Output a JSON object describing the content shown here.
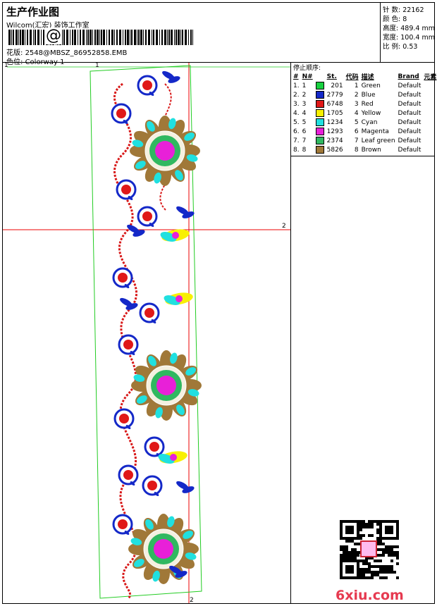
{
  "header": {
    "title": "生产作业图",
    "company": "Wilcom(汇宏) 装饰工作室",
    "barcode_label": "@",
    "design_file_label": "花版:",
    "design_file": "2548@MBSZ_86952858.EMB",
    "colorway_label": "色位:",
    "colorway": "Colorway 1"
  },
  "specs": [
    {
      "label": "针 数:",
      "value": "22162"
    },
    {
      "label": "颜 色:",
      "value": "8"
    },
    {
      "label": "高度:",
      "value": "489.4 mm"
    },
    {
      "label": "宽度:",
      "value": "100.4 mm"
    },
    {
      "label": "比 例:",
      "value": "0.53"
    }
  ],
  "stop_sequence": {
    "title": "停止顺序:",
    "headers": [
      "#",
      "N#",
      "St.",
      "代码",
      "描述",
      "Brand",
      "元素"
    ],
    "rows": [
      {
        "idx": "1.",
        "n": "1",
        "color": "#18d040",
        "code": "201",
        "num": "1",
        "desc": "Green",
        "brand": "Default"
      },
      {
        "idx": "2.",
        "n": "2",
        "color": "#1428c8",
        "code": "2779",
        "num": "2",
        "desc": "Blue",
        "brand": "Default"
      },
      {
        "idx": "3.",
        "n": "3",
        "color": "#e01818",
        "code": "6748",
        "num": "3",
        "desc": "Red",
        "brand": "Default"
      },
      {
        "idx": "4.",
        "n": "4",
        "color": "#f8f000",
        "code": "1705",
        "num": "4",
        "desc": "Yellow",
        "brand": "Default"
      },
      {
        "idx": "5.",
        "n": "5",
        "color": "#20e0e0",
        "code": "1234",
        "num": "5",
        "desc": "Cyan",
        "brand": "Default"
      },
      {
        "idx": "6.",
        "n": "6",
        "color": "#e820d8",
        "code": "1293",
        "num": "6",
        "desc": "Magenta",
        "brand": "Default"
      },
      {
        "idx": "7.",
        "n": "7",
        "color": "#30b860",
        "code": "2374",
        "num": "7",
        "desc": "Leaf green",
        "brand": "Default"
      },
      {
        "idx": "8.",
        "n": "8",
        "color": "#a07838",
        "code": "5826",
        "num": "8",
        "desc": "Brown",
        "brand": "Default"
      }
    ]
  },
  "markers": {
    "m1": "1",
    "m2": "2"
  },
  "watermark": "6xiu.com"
}
